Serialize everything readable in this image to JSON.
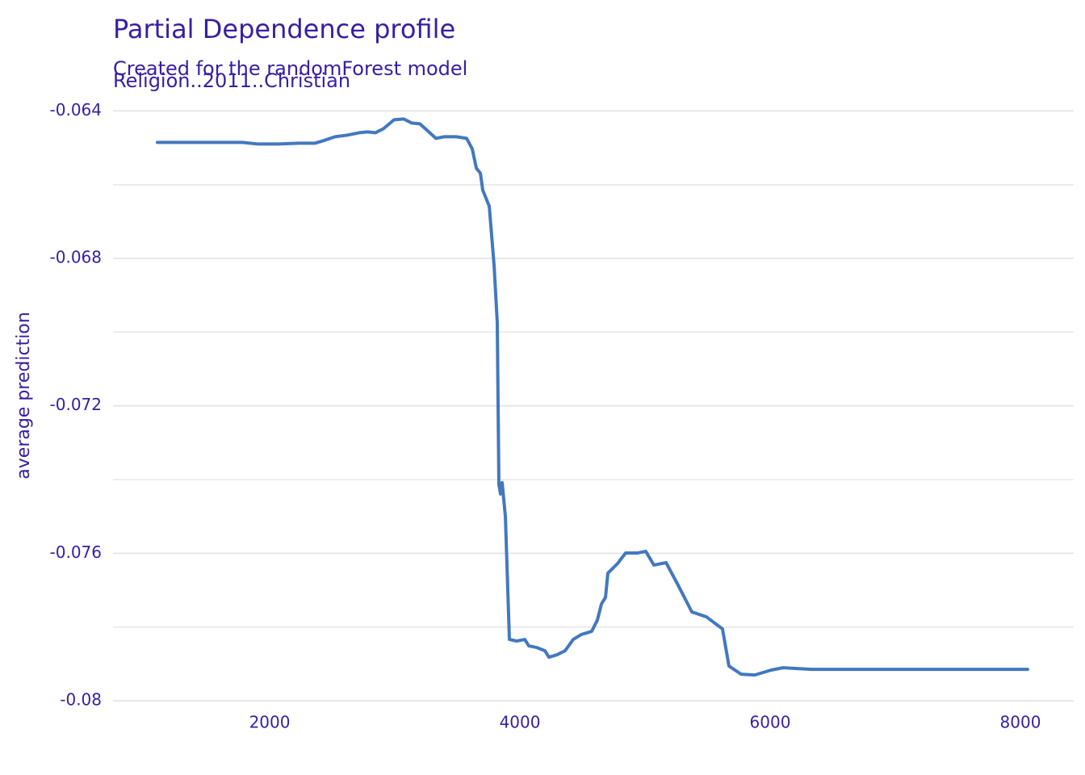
{
  "chart_data": {
    "type": "line",
    "title": "Partial Dependence profile",
    "subtitle": "Created for the randomForest model",
    "variable": "Religion..2011..Christian",
    "y_label": "average prediction",
    "x": [
      1103,
      1781,
      1910,
      2071,
      2232,
      2361,
      2426,
      2523,
      2619,
      2716,
      2781,
      2845,
      2910,
      2994,
      3071,
      3135,
      3200,
      3265,
      3329,
      3394,
      3490,
      3574,
      3619,
      3652,
      3684,
      3703,
      3755,
      3794,
      3819,
      3832,
      3845,
      3858,
      3884,
      3916,
      3974,
      4039,
      4071,
      4135,
      4200,
      4232,
      4297,
      4361,
      4426,
      4490,
      4574,
      4619,
      4652,
      4684,
      4703,
      4781,
      4845,
      4942,
      5006,
      5071,
      5168,
      5265,
      5374,
      5490,
      5619,
      5671,
      5768,
      5877,
      6006,
      6103,
      6329,
      8058
    ],
    "series": [
      {
        "name": "Religion..2011..Christian",
        "color": "#4378bf",
        "values": [
          -0.064855,
          -0.064855,
          -0.064899,
          -0.064899,
          -0.064877,
          -0.064877,
          -0.064811,
          -0.064701,
          -0.064658,
          -0.064592,
          -0.06457,
          -0.064592,
          -0.064482,
          -0.064241,
          -0.064219,
          -0.064329,
          -0.064351,
          -0.064548,
          -0.064745,
          -0.064701,
          -0.064701,
          -0.064745,
          -0.06503,
          -0.065556,
          -0.065688,
          -0.066148,
          -0.066587,
          -0.068209,
          -0.069743,
          -0.074127,
          -0.07439,
          -0.074083,
          -0.075004,
          -0.078336,
          -0.07838,
          -0.078336,
          -0.078511,
          -0.078555,
          -0.078643,
          -0.078818,
          -0.078752,
          -0.078643,
          -0.078336,
          -0.078204,
          -0.078116,
          -0.07781,
          -0.077371,
          -0.077196,
          -0.076538,
          -0.076275,
          -0.07599,
          -0.07599,
          -0.075946,
          -0.076319,
          -0.076253,
          -0.076867,
          -0.07759,
          -0.077722,
          -0.078051,
          -0.079059,
          -0.079278,
          -0.0793,
          -0.079169,
          -0.079103,
          -0.079147,
          -0.079147
        ]
      }
    ],
    "xlim": [
      748,
      8426
    ],
    "ylim": [
      -0.08048,
      -0.06351
    ],
    "xticks": [
      2000,
      4000,
      6000,
      8000
    ],
    "yticks": [
      -0.08,
      -0.076,
      -0.072,
      -0.068,
      -0.064
    ],
    "yminorticks": [
      -0.078,
      -0.074,
      -0.07,
      -0.066
    ],
    "grid": true
  }
}
